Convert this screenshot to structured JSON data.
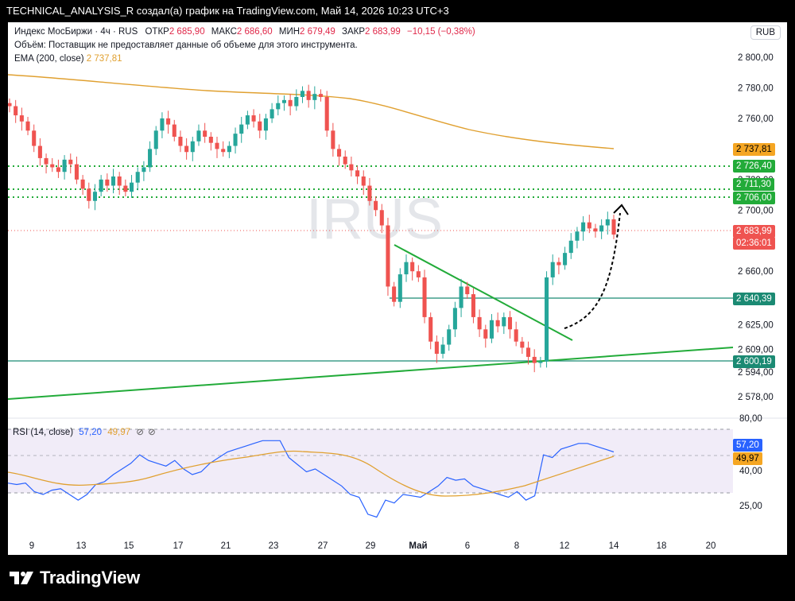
{
  "header_line": "TECHNICAL_ANALYSIS_R создал(а) график на TradingView.com, Май 14, 2026 10:23 UTC+3",
  "legend": {
    "symbol": "Индекс МосБиржи · 4ч · RUS",
    "open_label": "ОТКР",
    "open_value": "2 685,90",
    "high_label": "МАКС",
    "high_value": "2 686,60",
    "low_label": "МИН",
    "low_value": "2 679,49",
    "close_label": "ЗАКР",
    "close_value": "2 683,99",
    "change": "−10,15 (−0,38%)",
    "volume_note": "Объём: Поставщик не предоставляет данные об объеме для этого инструмента.",
    "ema_label": "EMA (200, close)",
    "ema_value": "2 737,81"
  },
  "currency_button": "RUB",
  "watermark": "IRUS",
  "price_axis_labels": [
    "2 800,00",
    "2 780,00",
    "2 760,00",
    "2 740,00",
    "2 720,00",
    "2 700,00",
    "2 660,00",
    "2 625,00",
    "2 609,00",
    "2 594,00",
    "2 578,00"
  ],
  "price_tags": {
    "ema": "2 737,81",
    "level_2726": "2 726,40",
    "level_2711": "2 711,30",
    "level_2706": "2 706,00",
    "last_price": "2 683,99",
    "countdown": "02:36:01",
    "level_2640": "2 640,39",
    "level_2600": "2 600,19"
  },
  "rsi": {
    "label": "RSI (14, close)",
    "value": "57,20",
    "ma_value": "49,97",
    "axis_labels": [
      "80,00",
      "40,00",
      "25,00"
    ],
    "tag_rsi": "57,20",
    "tag_ma": "49,97"
  },
  "time_axis_labels": [
    "9",
    "13",
    "15",
    "17",
    "21",
    "23",
    "27",
    "29",
    "Май",
    "6",
    "8",
    "12",
    "14",
    "18",
    "20"
  ],
  "brand": "TradingView",
  "colors": {
    "up": "#26a69a",
    "down": "#ef5350",
    "ema": "#e0a030",
    "level_green": "#22ab39",
    "rsi_line": "#2962ff",
    "rsi_band": "#ede7f6"
  },
  "chart_data": {
    "type": "candlestick",
    "timeframe": "4h",
    "closes_approx": [
      2768,
      2762,
      2758,
      2752,
      2742,
      2734,
      2730,
      2728,
      2725,
      2733,
      2730,
      2720,
      2714,
      2706,
      2712,
      2720,
      2716,
      2722,
      2716,
      2712,
      2718,
      2725,
      2728,
      2740,
      2752,
      2760,
      2756,
      2748,
      2742,
      2738,
      2745,
      2752,
      2748,
      2744,
      2740,
      2738,
      2742,
      2750,
      2756,
      2762,
      2758,
      2752,
      2760,
      2766,
      2770,
      2772,
      2768,
      2774,
      2778,
      2772,
      2776,
      2774,
      2752,
      2740,
      2735,
      2730,
      2726,
      2722,
      2716,
      2706,
      2700,
      2690,
      2650,
      2640,
      2658,
      2666,
      2660,
      2656,
      2630,
      2614,
      2606,
      2612,
      2622,
      2636,
      2650,
      2645,
      2630,
      2622,
      2616,
      2628,
      2624,
      2630,
      2622,
      2614,
      2610,
      2604,
      2600,
      2601,
      2656,
      2666,
      2664,
      2672,
      2680,
      2686,
      2692,
      2688,
      2686,
      2690,
      2694,
      2684
    ],
    "ema200": 2737.81,
    "horizontal_levels": [
      2726.4,
      2711.3,
      2706.0,
      2640.39,
      2600.19
    ],
    "rsi_values_approx": [
      42,
      41,
      42,
      36,
      34,
      37,
      38,
      34,
      30,
      34,
      41,
      43,
      48,
      52,
      56,
      62,
      58,
      56,
      54,
      58,
      52,
      48,
      50,
      56,
      60,
      64,
      66,
      68,
      70,
      72,
      72,
      72,
      60,
      55,
      50,
      52,
      48,
      44,
      40,
      34,
      32,
      20,
      18,
      30,
      28,
      34,
      33,
      32,
      36,
      40,
      46,
      44,
      45,
      40,
      38,
      36,
      34,
      32,
      36,
      30,
      33,
      62,
      60,
      66,
      68,
      70,
      70,
      68,
      66,
      64
    ]
  }
}
